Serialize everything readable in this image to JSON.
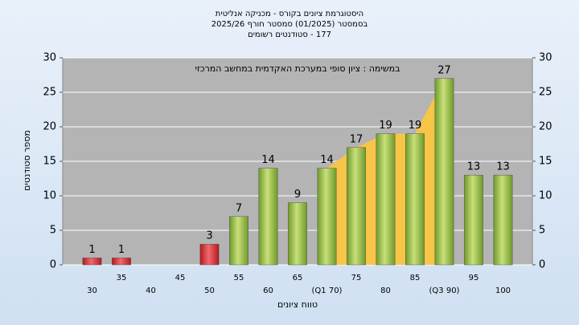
{
  "chart_data": {
    "type": "bar",
    "title": "היסטוגרמת ציונים בקורס - מכניקה אנליטית",
    "subtitle": "בסמסטר  (01/2025)  סמסטר חורף 2025/26",
    "subtitle2": "177 - סטודנטים רשומים",
    "annotation": "במשימה : ציון סופי במערכת האקדמית במחשב המרכזי",
    "x_label": "טווח ציונים",
    "y_label": "מספר סטודנטים",
    "categories": [
      "30",
      "35",
      "40",
      "45",
      "50",
      "55",
      "60",
      "65",
      "(Q1 70)",
      "75",
      "80",
      "85",
      "(Q3 90)",
      "95",
      "100"
    ],
    "values": [
      1,
      1,
      null,
      null,
      3,
      7,
      14,
      9,
      14,
      17,
      19,
      19,
      27,
      13,
      13
    ],
    "colors": [
      "#d8232a",
      "#d8232a",
      "#d8232a",
      "#d8232a",
      "#d8232a",
      "#8dbb3c",
      "#8dbb3c",
      "#8dbb3c",
      "#8dbb3c",
      "#8dbb3c",
      "#8dbb3c",
      "#8dbb3c",
      "#8dbb3c",
      "#8dbb3c",
      "#8dbb3c"
    ],
    "highlight_color": "#f7c548",
    "ylim": [
      0,
      30
    ],
    "yticks": [
      0,
      5,
      10,
      15,
      20,
      25,
      30
    ],
    "y2lim": [
      0,
      30
    ],
    "y2ticks": [
      0,
      5,
      10,
      15,
      20,
      25,
      30
    ],
    "grid": true
  }
}
